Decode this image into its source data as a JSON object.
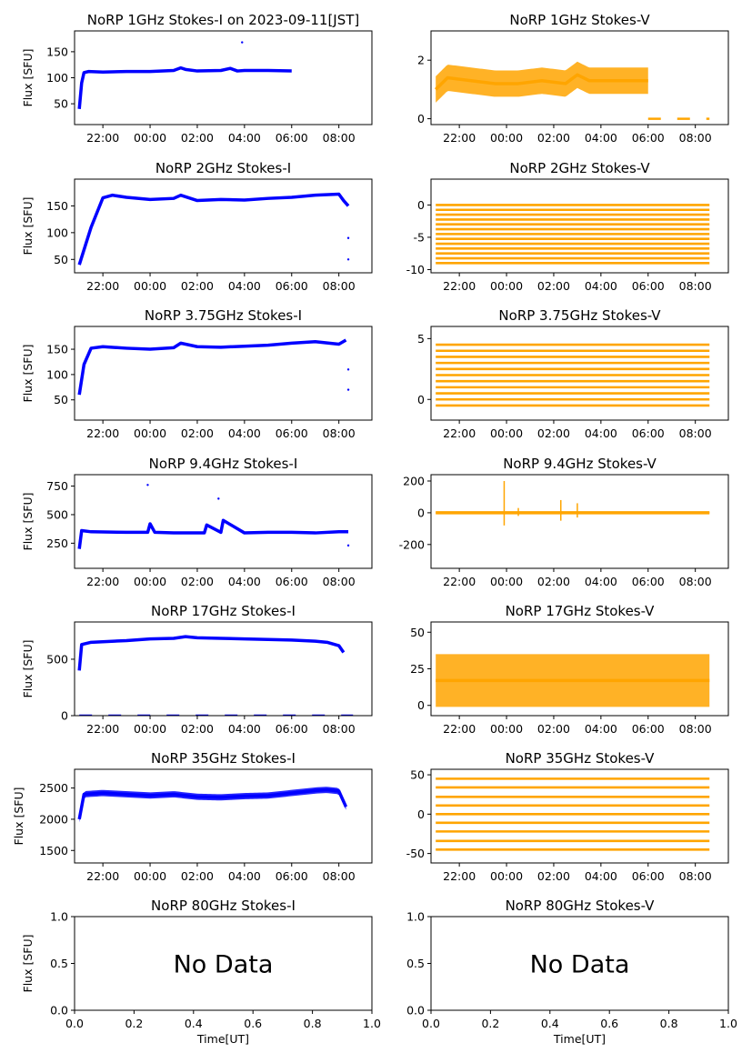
{
  "figure": {
    "x_axis_label": "Time[UT]",
    "no_data_text": "No Data"
  },
  "chart_data": [
    {
      "type": "scatter",
      "title": "NoRP 1GHz Stokes-I on 2023-09-11[JST]",
      "ylabel": "Flux [SFU]",
      "xlabel": "",
      "ylim": [
        10,
        190
      ],
      "yticks": [
        50,
        100,
        150
      ],
      "xlim": [
        -3.2,
        9.4
      ],
      "xticks": [
        "22:00",
        "00:00",
        "02:00",
        "04:00",
        "06:00",
        "08:00"
      ],
      "color": "#0000ff",
      "x": [
        -3.0,
        -2.9,
        -2.8,
        -2.6,
        -2.0,
        -1.0,
        0.0,
        1.0,
        1.3,
        1.5,
        2.0,
        3.0,
        3.4,
        3.7,
        4.0,
        5.0,
        6.0
      ],
      "y": [
        40,
        90,
        110,
        112,
        111,
        112,
        112,
        114,
        119,
        116,
        113,
        114,
        118,
        113,
        114,
        114,
        113
      ],
      "outliers": [
        [
          3.9,
          168
        ]
      ]
    },
    {
      "type": "scatter",
      "title": "NoRP 1GHz Stokes-V",
      "ylabel": "",
      "xlabel": "",
      "ylim": [
        -0.2,
        3.0
      ],
      "yticks": [
        0,
        2
      ],
      "xlim": [
        -3.2,
        9.4
      ],
      "xticks": [
        "22:00",
        "00:00",
        "02:00",
        "04:00",
        "06:00",
        "08:00"
      ],
      "color": "#ffa500",
      "x": [
        -3.0,
        -2.5,
        -1.5,
        -0.5,
        0.5,
        1.5,
        2.5,
        3.0,
        3.5,
        4.5,
        5.5,
        6.0
      ],
      "y": [
        1.0,
        1.4,
        1.3,
        1.2,
        1.2,
        1.3,
        1.2,
        1.5,
        1.3,
        1.3,
        1.3,
        1.3
      ],
      "band": 0.45,
      "baseline": {
        "x0": 6.0,
        "x1": 8.6,
        "y": 0
      }
    },
    {
      "type": "scatter",
      "title": "NoRP 2GHz Stokes-I",
      "ylabel": "Flux [SFU]",
      "xlabel": "",
      "ylim": [
        25,
        200
      ],
      "yticks": [
        50,
        100,
        150
      ],
      "xlim": [
        -3.2,
        9.4
      ],
      "xticks": [
        "22:00",
        "00:00",
        "02:00",
        "04:00",
        "06:00",
        "08:00"
      ],
      "color": "#0000ff",
      "x": [
        -3.0,
        -2.5,
        -2.0,
        -1.6,
        -1.0,
        0.0,
        1.0,
        1.3,
        2.0,
        3.0,
        4.0,
        5.0,
        6.0,
        7.0,
        8.0,
        8.2,
        8.4
      ],
      "y": [
        40,
        110,
        165,
        170,
        166,
        162,
        164,
        170,
        160,
        162,
        161,
        164,
        166,
        170,
        172,
        160,
        150
      ],
      "outliers": [
        [
          8.4,
          50
        ],
        [
          8.4,
          90
        ]
      ]
    },
    {
      "type": "scatter",
      "title": "NoRP 2GHz Stokes-V",
      "ylabel": "",
      "xlabel": "",
      "ylim": [
        -10.5,
        4
      ],
      "yticks": [
        -10,
        -5,
        0
      ],
      "xlim": [
        -3.2,
        9.4
      ],
      "xticks": [
        "22:00",
        "00:00",
        "02:00",
        "04:00",
        "06:00",
        "08:00"
      ],
      "color": "#ffa500",
      "x": [
        -3.0,
        8.6
      ],
      "levels": [
        0,
        -0.75,
        -1.5,
        -2.25,
        -3,
        -3.75,
        -4.5,
        -5.25,
        -6,
        -6.75,
        -7.5,
        -8.25,
        -9
      ],
      "band": 0
    },
    {
      "type": "scatter",
      "title": "NoRP 3.75GHz Stokes-I",
      "ylabel": "Flux [SFU]",
      "xlabel": "",
      "ylim": [
        10,
        195
      ],
      "yticks": [
        50,
        100,
        150
      ],
      "xlim": [
        -3.2,
        9.4
      ],
      "xticks": [
        "22:00",
        "00:00",
        "02:00",
        "04:00",
        "06:00",
        "08:00"
      ],
      "color": "#0000ff",
      "x": [
        -3.0,
        -2.8,
        -2.5,
        -2.0,
        -1.0,
        0.0,
        1.0,
        1.3,
        2.0,
        3.0,
        4.0,
        5.0,
        6.0,
        7.0,
        8.0,
        8.3
      ],
      "y": [
        60,
        120,
        152,
        155,
        152,
        150,
        153,
        162,
        155,
        154,
        156,
        158,
        162,
        165,
        160,
        168
      ],
      "outliers": [
        [
          8.4,
          70
        ],
        [
          8.4,
          110
        ]
      ]
    },
    {
      "type": "scatter",
      "title": "NoRP 3.75GHz Stokes-V",
      "ylabel": "",
      "xlabel": "",
      "ylim": [
        -1.7,
        6
      ],
      "yticks": [
        0,
        5
      ],
      "xlim": [
        -3.2,
        9.4
      ],
      "xticks": [
        "22:00",
        "00:00",
        "02:00",
        "04:00",
        "06:00",
        "08:00"
      ],
      "color": "#ffa500",
      "x": [
        -3.0,
        8.6
      ],
      "levels": [
        -0.5,
        0,
        0.5,
        1,
        1.5,
        2,
        2.5,
        3,
        3.5,
        4,
        4.5
      ],
      "band": 0
    },
    {
      "type": "scatter",
      "title": "NoRP 9.4GHz Stokes-I",
      "ylabel": "Flux [SFU]",
      "xlabel": "",
      "ylim": [
        30,
        850
      ],
      "yticks": [
        250,
        500,
        750
      ],
      "xlim": [
        -3.2,
        9.4
      ],
      "xticks": [
        "22:00",
        "00:00",
        "02:00",
        "04:00",
        "06:00",
        "08:00"
      ],
      "color": "#0000ff",
      "x": [
        -3.0,
        -2.9,
        -2.5,
        -1.0,
        -0.1,
        0.0,
        0.2,
        1.0,
        2.3,
        2.4,
        3.0,
        3.1,
        4.0,
        5.0,
        6.0,
        7.0,
        8.0,
        8.4
      ],
      "y": [
        200,
        360,
        350,
        345,
        345,
        420,
        345,
        340,
        340,
        410,
        345,
        450,
        340,
        345,
        345,
        340,
        350,
        350
      ],
      "outliers": [
        [
          -0.1,
          760
        ],
        [
          2.9,
          640
        ],
        [
          8.4,
          230
        ]
      ]
    },
    {
      "type": "scatter",
      "title": "NoRP 9.4GHz Stokes-V",
      "ylabel": "",
      "xlabel": "",
      "ylim": [
        -350,
        240
      ],
      "yticks": [
        -200,
        0,
        200
      ],
      "xlim": [
        -3.2,
        9.4
      ],
      "xticks": [
        "22:00",
        "00:00",
        "02:00",
        "04:00",
        "06:00",
        "08:00"
      ],
      "color": "#ffa500",
      "x": [
        -3.0,
        8.6
      ],
      "y": [
        0,
        0
      ],
      "band": 5,
      "spikes": [
        [
          -0.1,
          -80,
          200
        ],
        [
          0.5,
          -20,
          30
        ],
        [
          2.3,
          -50,
          80
        ],
        [
          3.0,
          -30,
          60
        ]
      ]
    },
    {
      "type": "scatter",
      "title": "NoRP 17GHz Stokes-I",
      "ylabel": "Flux [SFU]",
      "xlabel": "",
      "ylim": [
        0,
        830
      ],
      "yticks": [
        0,
        500
      ],
      "xlim": [
        -3.2,
        9.4
      ],
      "xticks": [
        "22:00",
        "00:00",
        "02:00",
        "04:00",
        "06:00",
        "08:00"
      ],
      "color": "#0000ff",
      "x": [
        -3.0,
        -2.9,
        -2.5,
        -1.0,
        0.0,
        1.0,
        1.5,
        2.0,
        3.0,
        4.0,
        5.0,
        6.0,
        7.0,
        7.5,
        8.0,
        8.2
      ],
      "y": [
        400,
        630,
        650,
        665,
        680,
        685,
        700,
        690,
        685,
        680,
        675,
        670,
        660,
        650,
        620,
        560
      ],
      "baseline": {
        "x0": -3.0,
        "x1": 8.6,
        "y": 0
      }
    },
    {
      "type": "scatter",
      "title": "NoRP 17GHz Stokes-V",
      "ylabel": "",
      "xlabel": "",
      "ylim": [
        -7,
        57
      ],
      "yticks": [
        0,
        25,
        50
      ],
      "xlim": [
        -3.2,
        9.4
      ],
      "xticks": [
        "22:00",
        "00:00",
        "02:00",
        "04:00",
        "06:00",
        "08:00"
      ],
      "color": "#ffa500",
      "x": [
        -3.0,
        8.6
      ],
      "y": [
        17,
        17
      ],
      "band": 18
    },
    {
      "type": "scatter",
      "title": "NoRP 35GHz Stokes-I",
      "ylabel": "Flux [SFU]",
      "xlabel": "",
      "ylim": [
        1300,
        2800
      ],
      "yticks": [
        1500,
        2000,
        2500
      ],
      "xlim": [
        -3.2,
        9.4
      ],
      "xticks": [
        "22:00",
        "00:00",
        "02:00",
        "04:00",
        "06:00",
        "08:00"
      ],
      "color": "#0000ff",
      "x": [
        -3.0,
        -2.8,
        -2.0,
        -1.0,
        0.0,
        1.0,
        2.0,
        3.0,
        4.0,
        5.0,
        6.0,
        7.0,
        7.5,
        8.0,
        8.3
      ],
      "y": [
        2000,
        2400,
        2420,
        2400,
        2380,
        2400,
        2360,
        2350,
        2370,
        2380,
        2420,
        2460,
        2470,
        2450,
        2200
      ],
      "band": 50
    },
    {
      "type": "scatter",
      "title": "NoRP 35GHz Stokes-V",
      "ylabel": "",
      "xlabel": "",
      "ylim": [
        -62,
        57
      ],
      "yticks": [
        -50,
        0,
        50
      ],
      "xlim": [
        -3.2,
        9.4
      ],
      "xticks": [
        "22:00",
        "00:00",
        "02:00",
        "04:00",
        "06:00",
        "08:00"
      ],
      "color": "#ffa500",
      "x": [
        -3.0,
        8.6
      ],
      "levels": [
        -45,
        -34,
        -22,
        -11,
        0,
        11,
        22,
        34,
        45
      ],
      "band": 0
    },
    {
      "type": "empty",
      "title": "NoRP 80GHz Stokes-I",
      "ylabel": "Flux [SFU]",
      "xlabel": "Time[UT]",
      "xlim": [
        0,
        1
      ],
      "ylim": [
        0,
        1
      ],
      "xticks": [
        "0.0",
        "0.2",
        "0.4",
        "0.6",
        "0.8",
        "1.0"
      ],
      "yticks": [
        "0.0",
        "0.5",
        "1.0"
      ],
      "message": "No Data"
    },
    {
      "type": "empty",
      "title": "NoRP 80GHz Stokes-V",
      "ylabel": "",
      "xlabel": "Time[UT]",
      "xlim": [
        0,
        1
      ],
      "ylim": [
        0,
        1
      ],
      "xticks": [
        "0.0",
        "0.2",
        "0.4",
        "0.6",
        "0.8",
        "1.0"
      ],
      "yticks": [
        "0.0",
        "0.5",
        "1.0"
      ],
      "message": "No Data"
    }
  ]
}
